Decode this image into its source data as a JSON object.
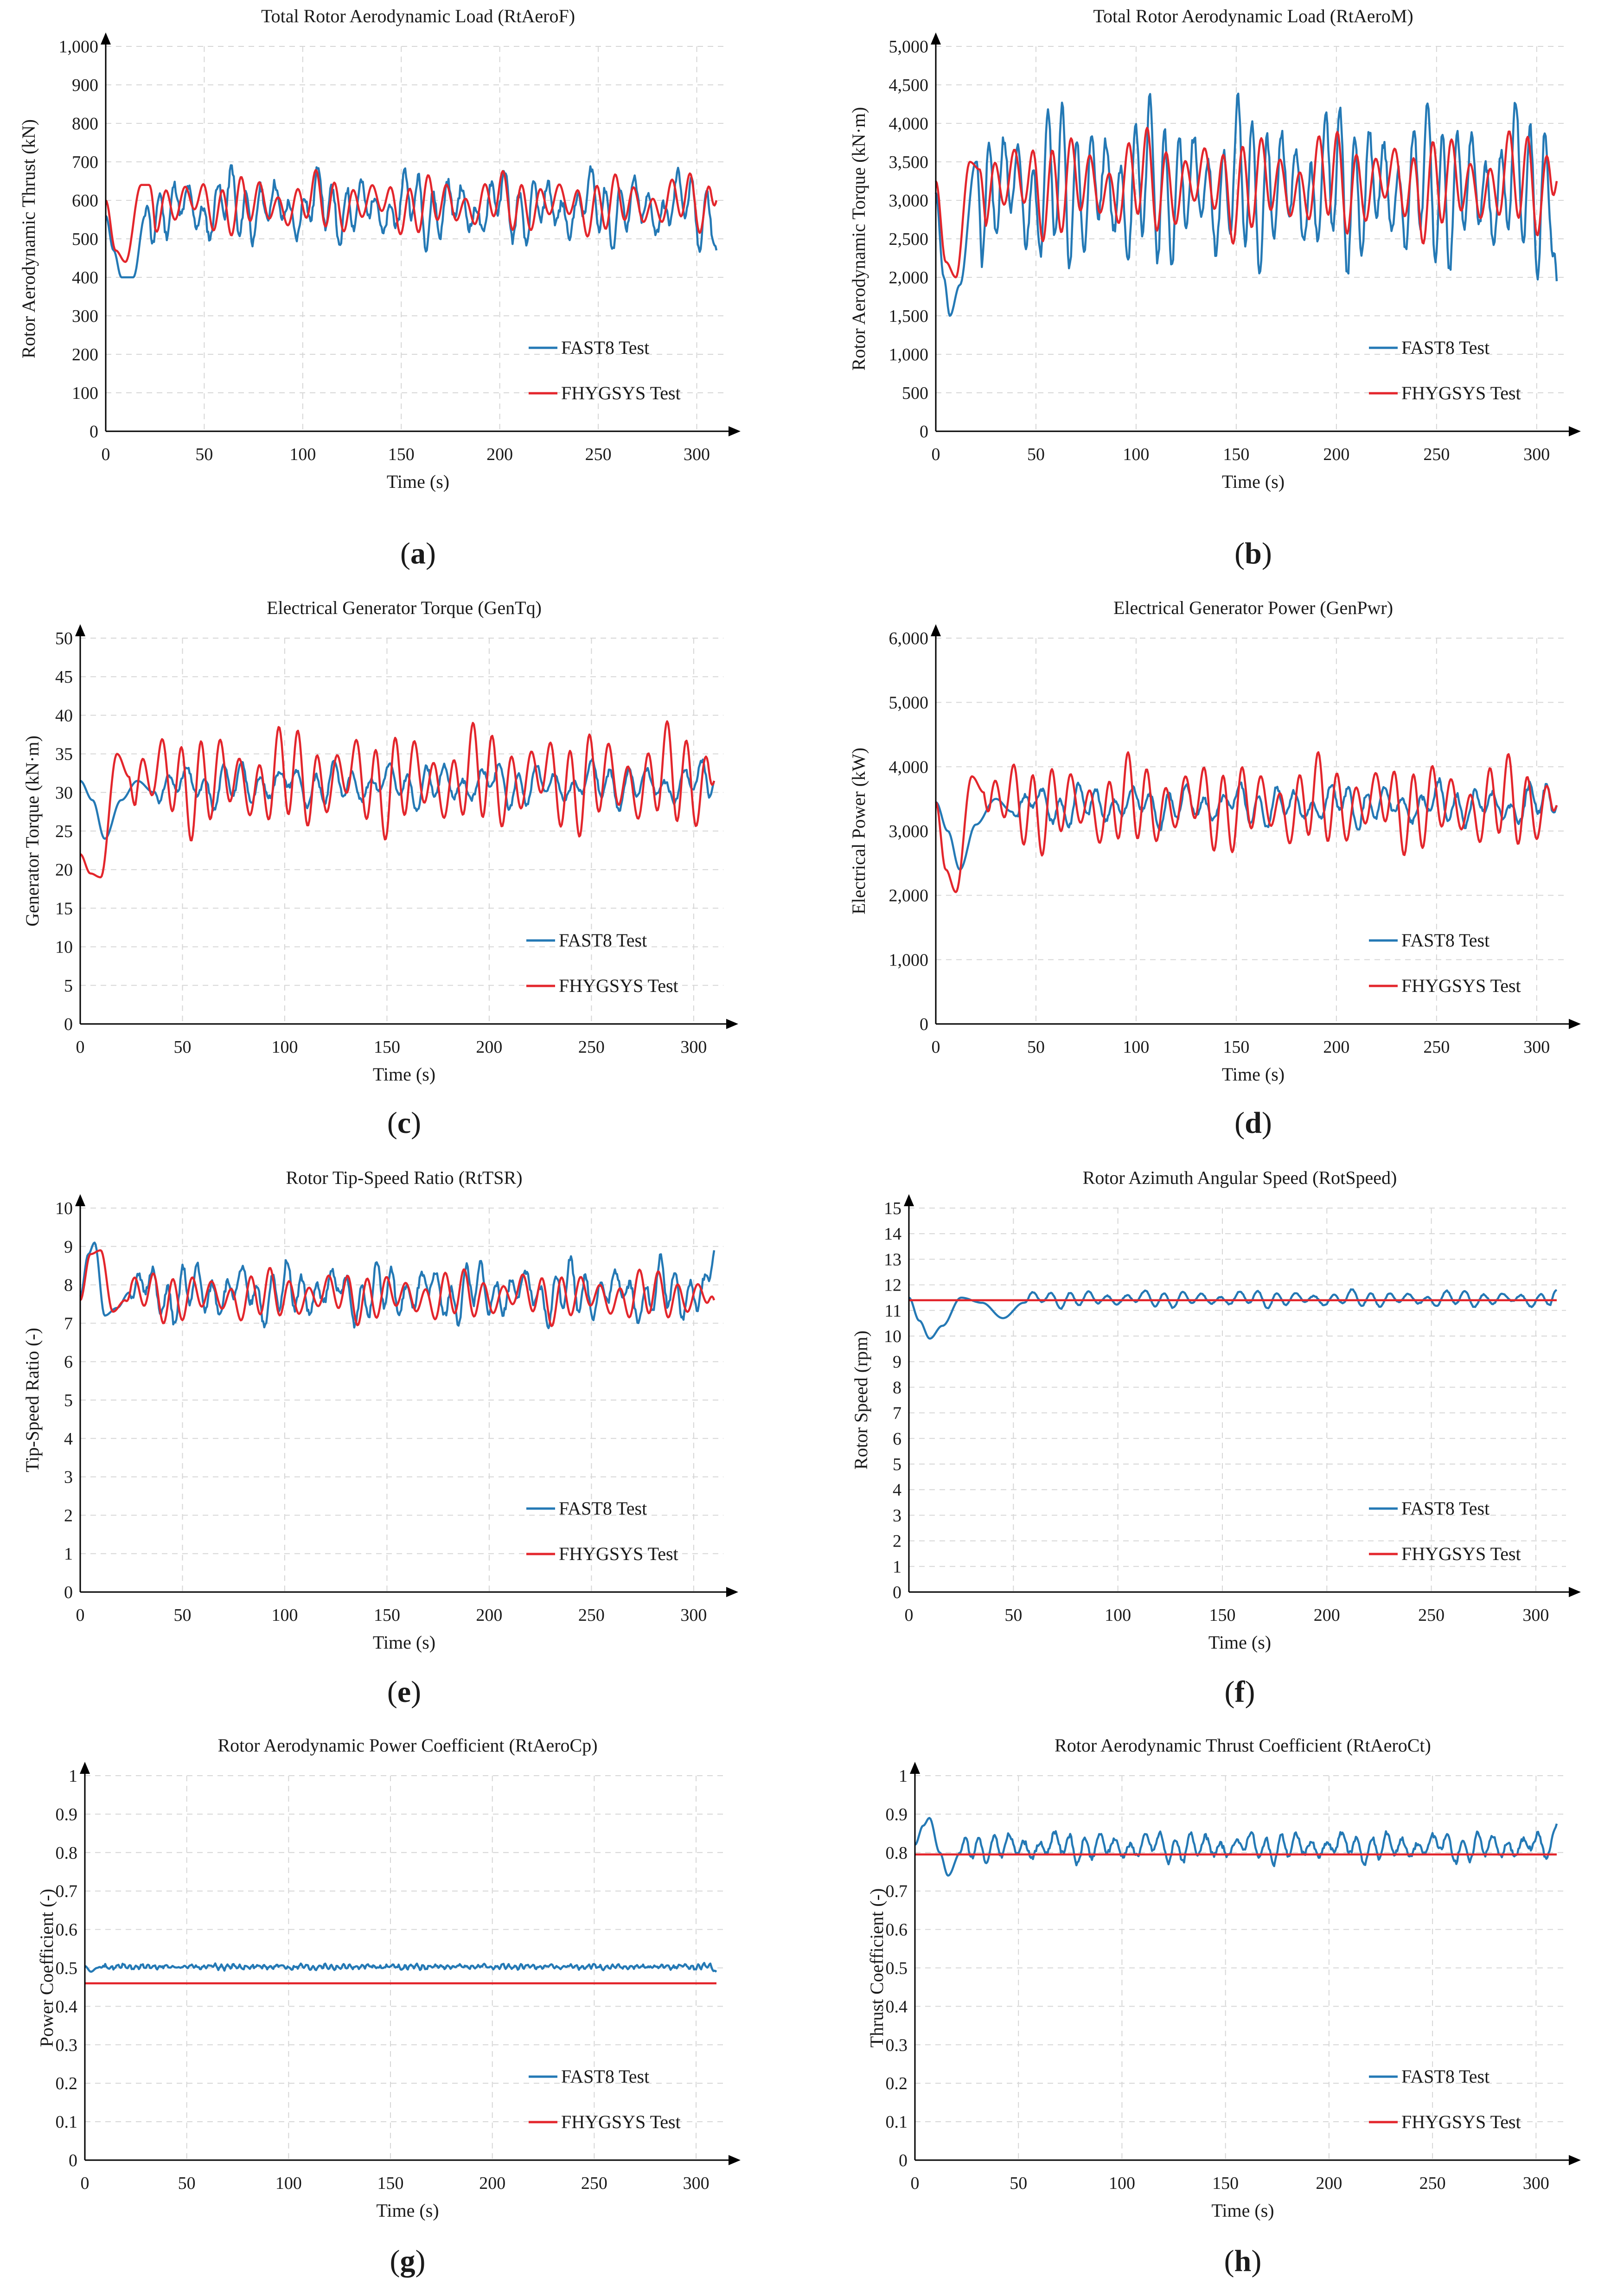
{
  "colors": {
    "fast8": "#2479b5",
    "fhygsys": "#e3262c",
    "grid": "#d6d6d6",
    "axis": "#000000"
  },
  "legend": {
    "fast8": "FAST8 Test",
    "fhygsys": "FHYGSYS Test"
  },
  "chart_data": [
    {
      "id": "a",
      "panel_label": "(a)",
      "type": "line",
      "title": "Total Rotor Aerodynamic Load (RtAeroF)",
      "xlabel": "Time (s)",
      "ylabel": "Rotor Aerodynamic Thrust (kN)",
      "xlim": [
        0,
        310
      ],
      "ylim": [
        0,
        1000
      ],
      "xticks": [
        0,
        50,
        100,
        150,
        200,
        250,
        300
      ],
      "yticks": [
        0,
        100,
        200,
        300,
        400,
        500,
        600,
        700,
        800,
        900,
        1000
      ],
      "ytick_labels": [
        "0",
        "100",
        "200",
        "300",
        "400",
        "500",
        "600",
        "700",
        "800",
        "900",
        "1,000"
      ],
      "series": [
        {
          "name": "FAST8 Test",
          "kind": "osc",
          "init": [
            [
              0,
              560
            ],
            [
              4,
              470
            ],
            [
              8,
              400
            ],
            [
              14,
              400
            ],
            [
              20,
              560
            ]
          ],
          "mean": 580,
          "amps": [
            55,
            35
          ],
          "periods": [
            7.3,
            23
          ],
          "noise": 12,
          "end": 470,
          "seed": 11
        },
        {
          "name": "FHYGSYS Test",
          "kind": "osc",
          "init": [
            [
              0,
              600
            ],
            [
              5,
              470
            ],
            [
              10,
              440
            ],
            [
              18,
              640
            ],
            [
              22,
              640
            ]
          ],
          "mean": 590,
          "amps": [
            50,
            20
          ],
          "periods": [
            9.5,
            31
          ],
          "noise": 0,
          "end": 600,
          "seed": 12
        }
      ]
    },
    {
      "id": "b",
      "panel_label": "(b)",
      "type": "line",
      "title": "Total Rotor Aerodynamic Load (RtAeroM)",
      "xlabel": "Time (s)",
      "ylabel": "Rotor Aerodynamic Torque (kN·m)",
      "xlim": [
        0,
        310
      ],
      "ylim": [
        0,
        5000
      ],
      "xticks": [
        0,
        50,
        100,
        150,
        200,
        250,
        300
      ],
      "yticks": [
        0,
        500,
        1000,
        1500,
        2000,
        2500,
        3000,
        3500,
        4000,
        4500,
        5000
      ],
      "ytick_labels": [
        "0",
        "500",
        "1,000",
        "1,500",
        "2,000",
        "2,500",
        "3,000",
        "3,500",
        "4,000",
        "4,500",
        "5,000"
      ],
      "series": [
        {
          "name": "FAST8 Test",
          "kind": "osc",
          "init": [
            [
              0,
              3100
            ],
            [
              4,
              2000
            ],
            [
              7,
              1500
            ],
            [
              12,
              1900
            ],
            [
              20,
              3500
            ]
          ],
          "mean": 3150,
          "amps": [
            700,
            250
          ],
          "periods": [
            7.3,
            23
          ],
          "noise": 80,
          "end": 1950,
          "seed": 21
        },
        {
          "name": "FHYGSYS Test",
          "kind": "osc",
          "init": [
            [
              0,
              3250
            ],
            [
              5,
              2200
            ],
            [
              10,
              2000
            ],
            [
              17,
              3500
            ],
            [
              22,
              3400
            ]
          ],
          "mean": 3200,
          "amps": [
            450,
            150
          ],
          "periods": [
            9.5,
            31
          ],
          "noise": 0,
          "end": 3250,
          "seed": 22
        }
      ]
    },
    {
      "id": "c",
      "panel_label": "(c)",
      "type": "line",
      "title": "Electrical Generator Torque (GenTq)",
      "xlabel": "Time (s)",
      "ylabel": "Generator Torque (kN·m)",
      "xlim": [
        0,
        310
      ],
      "ylim": [
        0,
        50
      ],
      "xticks": [
        0,
        50,
        100,
        150,
        200,
        250,
        300
      ],
      "yticks": [
        0,
        5,
        10,
        15,
        20,
        25,
        30,
        35,
        40,
        45,
        50
      ],
      "ytick_labels": [
        "0",
        "5",
        "10",
        "15",
        "20",
        "25",
        "30",
        "35",
        "40",
        "45",
        "50"
      ],
      "series": [
        {
          "name": "FAST8 Test",
          "kind": "osc",
          "init": [
            [
              0,
              31.5
            ],
            [
              6,
              29
            ],
            [
              12,
              24
            ],
            [
              20,
              29
            ],
            [
              28,
              31.5
            ],
            [
              36,
              30
            ]
          ],
          "mean": 31,
          "amps": [
            1.8,
            1.0
          ],
          "periods": [
            9,
            25
          ],
          "noise": 0.3,
          "end": 31.5,
          "seed": 31
        },
        {
          "name": "FHYGSYS Test",
          "kind": "osc",
          "init": [
            [
              0,
              22
            ],
            [
              5,
              19.5
            ],
            [
              10,
              19
            ],
            [
              18,
              35
            ],
            [
              24,
              32
            ]
          ],
          "mean": 31.5,
          "amps": [
            4.5,
            1.5
          ],
          "periods": [
            9.5,
            31
          ],
          "noise": 0,
          "end": 31.5,
          "seed": 32
        }
      ]
    },
    {
      "id": "d",
      "panel_label": "(d)",
      "type": "line",
      "title": "Electrical Generator Power (GenPwr)",
      "xlabel": "Time (s)",
      "ylabel": "Electrical Power (kW)",
      "xlim": [
        0,
        310
      ],
      "ylim": [
        0,
        6000
      ],
      "xticks": [
        0,
        50,
        100,
        150,
        200,
        250,
        300
      ],
      "yticks": [
        0,
        1000,
        2000,
        3000,
        4000,
        5000,
        6000
      ],
      "ytick_labels": [
        "0",
        "1,000",
        "2,000",
        "3,000",
        "4,000",
        "5,000",
        "6,000"
      ],
      "series": [
        {
          "name": "FAST8 Test",
          "kind": "osc",
          "init": [
            [
              0,
              3450
            ],
            [
              6,
              3000
            ],
            [
              12,
              2400
            ],
            [
              20,
              3100
            ],
            [
              30,
              3500
            ],
            [
              38,
              3300
            ]
          ],
          "mean": 3400,
          "amps": [
            200,
            120
          ],
          "periods": [
            9,
            25
          ],
          "noise": 40,
          "end": 3400,
          "seed": 41
        },
        {
          "name": "FHYGSYS Test",
          "kind": "osc",
          "init": [
            [
              0,
              3450
            ],
            [
              5,
              2400
            ],
            [
              10,
              2050
            ],
            [
              18,
              3850
            ],
            [
              24,
              3600
            ]
          ],
          "mean": 3400,
          "amps": [
            480,
            160
          ],
          "periods": [
            9.5,
            31
          ],
          "noise": 0,
          "end": 3400,
          "seed": 42
        }
      ]
    },
    {
      "id": "e",
      "panel_label": "(e)",
      "type": "line",
      "title": "Rotor Tip-Speed Ratio (RtTSR)",
      "xlabel": "Time (s)",
      "ylabel": "Tip-Speed Ratio (-)",
      "xlim": [
        0,
        310
      ],
      "ylim": [
        0,
        10
      ],
      "xticks": [
        0,
        50,
        100,
        150,
        200,
        250,
        300
      ],
      "yticks": [
        0,
        1,
        2,
        3,
        4,
        5,
        6,
        7,
        8,
        9,
        10
      ],
      "ytick_labels": [
        "0",
        "1",
        "2",
        "3",
        "4",
        "5",
        "6",
        "7",
        "8",
        "9",
        "10"
      ],
      "series": [
        {
          "name": "FAST8 Test",
          "kind": "osc",
          "init": [
            [
              0,
              7.7
            ],
            [
              4,
              8.8
            ],
            [
              7,
              9.1
            ],
            [
              12,
              7.2
            ],
            [
              18,
              7.4
            ],
            [
              24,
              7.8
            ]
          ],
          "mean": 7.8,
          "amps": [
            0.45,
            0.3
          ],
          "periods": [
            7.3,
            23
          ],
          "noise": 0.1,
          "end": 8.9,
          "seed": 51
        },
        {
          "name": "FHYGSYS Test",
          "kind": "osc",
          "init": [
            [
              0,
              7.6
            ],
            [
              5,
              8.8
            ],
            [
              10,
              8.9
            ],
            [
              16,
              7.3
            ],
            [
              22,
              7.6
            ]
          ],
          "mean": 7.7,
          "amps": [
            0.45,
            0.15
          ],
          "periods": [
            9.5,
            31
          ],
          "noise": 0,
          "end": 7.6,
          "seed": 52
        }
      ]
    },
    {
      "id": "f",
      "panel_label": "(f)",
      "type": "line",
      "title": "Rotor Azimuth Angular Speed (RotSpeed)",
      "xlabel": "Time (s)",
      "ylabel": "Rotor Speed (rpm)",
      "xlim": [
        0,
        310
      ],
      "ylim": [
        0,
        15
      ],
      "xticks": [
        0,
        50,
        100,
        150,
        200,
        250,
        300
      ],
      "yticks": [
        0,
        1,
        2,
        3,
        4,
        5,
        6,
        7,
        8,
        9,
        10,
        11,
        12,
        13,
        14,
        15
      ],
      "ytick_labels": [
        "0",
        "1",
        "2",
        "3",
        "4",
        "5",
        "6",
        "7",
        "8",
        "9",
        "10",
        "11",
        "12",
        "13",
        "14",
        "15"
      ],
      "series": [
        {
          "name": "FAST8 Test",
          "kind": "osc",
          "init": [
            [
              0,
              11.5
            ],
            [
              5,
              10.6
            ],
            [
              10,
              9.9
            ],
            [
              16,
              10.4
            ],
            [
              25,
              11.5
            ],
            [
              35,
              11.3
            ],
            [
              45,
              10.7
            ],
            [
              55,
              11.3
            ]
          ],
          "mean": 11.45,
          "amps": [
            0.22,
            0.08
          ],
          "periods": [
            9,
            25
          ],
          "noise": 0.02,
          "end": 11.8,
          "seed": 61
        },
        {
          "name": "FHYGSYS Test",
          "kind": "const",
          "value": 11.4
        }
      ]
    },
    {
      "id": "g",
      "panel_label": "(g)",
      "type": "line",
      "title": "Rotor Aerodynamic Power Coefficient (RtAeroCp)",
      "xlabel": "Time (s)",
      "ylabel": "Power Coefficient (-)",
      "xlim": [
        0,
        310
      ],
      "ylim": [
        0,
        1
      ],
      "xticks": [
        0,
        50,
        100,
        150,
        200,
        250,
        300
      ],
      "yticks": [
        0,
        0.1,
        0.2,
        0.3,
        0.4,
        0.5,
        0.6,
        0.7,
        0.8,
        0.9,
        1
      ],
      "ytick_labels": [
        "0",
        "0.1",
        "0.2",
        "0.3",
        "0.4",
        "0.5",
        "0.6",
        "0.7",
        "0.8",
        "0.9",
        "1"
      ],
      "series": [
        {
          "name": "FAST8 Test",
          "kind": "osc",
          "init": [
            [
              0,
              0.505
            ],
            [
              3,
              0.49
            ],
            [
              6,
              0.5
            ]
          ],
          "mean": 0.503,
          "amps": [
            0.004,
            0.002
          ],
          "periods": [
            3,
            11
          ],
          "noise": 0.003,
          "end": 0.49,
          "seed": 71
        },
        {
          "name": "FHYGSYS Test",
          "kind": "const",
          "value": 0.46
        }
      ]
    },
    {
      "id": "h",
      "panel_label": "(h)",
      "type": "line",
      "title": "Rotor Aerodynamic Thrust Coefficient (RtAeroCt)",
      "xlabel": "Time (s)",
      "ylabel": "Thrust Coefficient (-)",
      "xlim": [
        0,
        310
      ],
      "ylim": [
        0,
        1
      ],
      "xticks": [
        0,
        50,
        100,
        150,
        200,
        250,
        300
      ],
      "yticks": [
        0,
        0.1,
        0.2,
        0.3,
        0.4,
        0.5,
        0.6,
        0.7,
        0.8,
        0.9,
        1
      ],
      "ytick_labels": [
        "0",
        "0.1",
        "0.2",
        "0.3",
        "0.4",
        "0.5",
        "0.6",
        "0.7",
        "0.8",
        "0.9",
        "1"
      ],
      "series": [
        {
          "name": "FAST8 Test",
          "kind": "osc",
          "init": [
            [
              0,
              0.82
            ],
            [
              4,
              0.87
            ],
            [
              7,
              0.89
            ],
            [
              12,
              0.8
            ],
            [
              16,
              0.74
            ],
            [
              22,
              0.8
            ]
          ],
          "mean": 0.815,
          "amps": [
            0.025,
            0.012
          ],
          "periods": [
            7.3,
            23
          ],
          "noise": 0.006,
          "end": 0.875,
          "seed": 81
        },
        {
          "name": "FHYGSYS Test",
          "kind": "const",
          "value": 0.795
        }
      ]
    }
  ]
}
